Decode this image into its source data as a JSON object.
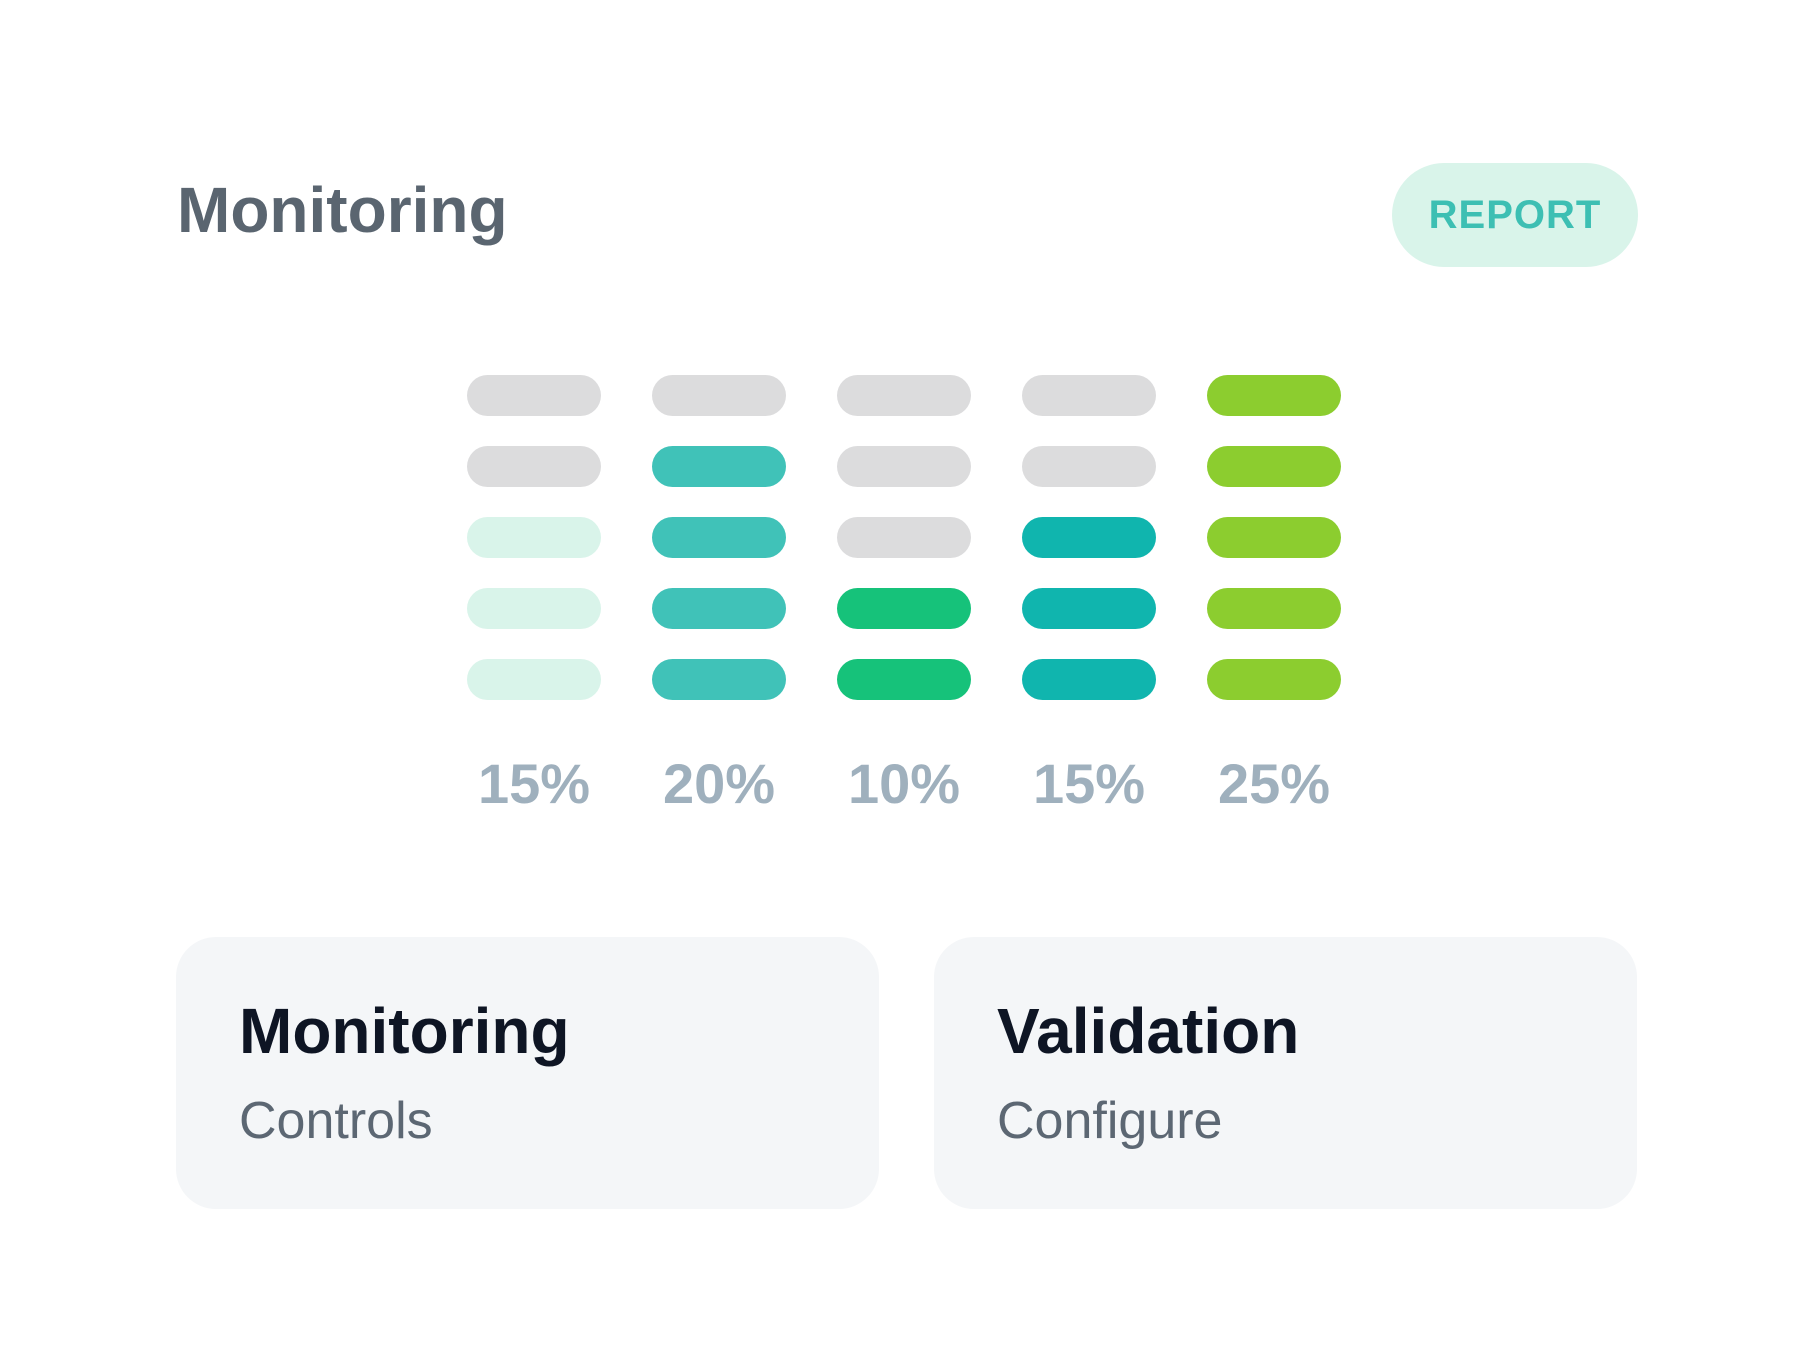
{
  "header": {
    "title": "Monitoring",
    "report_label": "REPORT"
  },
  "meters": [
    {
      "label": "15%",
      "segments": [
        "#dcdcdd",
        "#dcdcdd",
        "#d9f4ea",
        "#d9f4ea",
        "#d9f4ea"
      ]
    },
    {
      "label": "20%",
      "segments": [
        "#dcdcdd",
        "#40c2b8",
        "#40c2b8",
        "#40c2b8",
        "#40c2b8"
      ]
    },
    {
      "label": "10%",
      "segments": [
        "#dcdcdd",
        "#dcdcdd",
        "#dcdcdd",
        "#16c27a",
        "#16c27a"
      ]
    },
    {
      "label": "15%",
      "segments": [
        "#dcdcdd",
        "#dcdcdd",
        "#10b5ae",
        "#10b5ae",
        "#10b5ae"
      ]
    },
    {
      "label": "25%",
      "segments": [
        "#8ccd2f",
        "#8ccd2f",
        "#8ccd2f",
        "#8ccd2f",
        "#8ccd2f"
      ]
    }
  ],
  "cards": [
    {
      "title": "Monitoring",
      "subtitle": "Controls"
    },
    {
      "title": "Validation",
      "subtitle": "Configure"
    }
  ]
}
